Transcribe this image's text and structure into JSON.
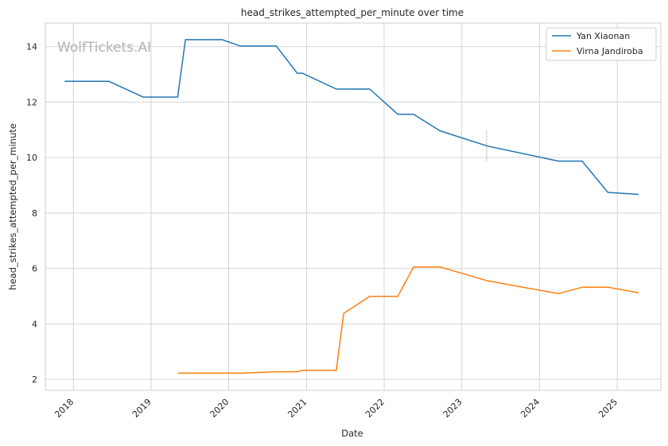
{
  "chart_data": {
    "type": "line",
    "title": "head_strikes_attempted_per_minute over time",
    "xlabel": "Date",
    "ylabel": "head_strikes_attempted_per_minute",
    "x_ticks": [
      "2018",
      "2019",
      "2020",
      "2021",
      "2022",
      "2023",
      "2024",
      "2025"
    ],
    "y_ticks": [
      2,
      4,
      6,
      8,
      10,
      12,
      14
    ],
    "xlim": [
      "2017-08-22",
      "2025-07-25"
    ],
    "ylim": [
      1.6,
      14.85
    ],
    "grid": true,
    "legend_position": "top-right",
    "watermark": "WolfTickets.AI",
    "series": [
      {
        "name": "Yan Xiaonan",
        "color": "#1f77b4",
        "points": [
          {
            "x": "2017-11-21",
            "y": 12.75
          },
          {
            "x": "2018-06-16",
            "y": 12.75
          },
          {
            "x": "2018-11-25",
            "y": 12.18
          },
          {
            "x": "2019-05-06",
            "y": 12.18
          },
          {
            "x": "2019-06-12",
            "y": 14.25
          },
          {
            "x": "2019-12-02",
            "y": 14.25
          },
          {
            "x": "2020-02-25",
            "y": 14.02
          },
          {
            "x": "2020-08-12",
            "y": 14.02
          },
          {
            "x": "2020-11-18",
            "y": 13.04
          },
          {
            "x": "2020-12-13",
            "y": 13.04
          },
          {
            "x": "2021-05-21",
            "y": 12.47
          },
          {
            "x": "2021-10-25",
            "y": 12.47
          },
          {
            "x": "2022-03-06",
            "y": 11.56
          },
          {
            "x": "2022-05-19",
            "y": 11.56
          },
          {
            "x": "2022-09-21",
            "y": 10.96
          },
          {
            "x": "2023-05-03",
            "y": 10.41
          },
          {
            "x": "2024-03-30",
            "y": 9.87
          },
          {
            "x": "2024-07-20",
            "y": 9.87
          },
          {
            "x": "2024-11-18",
            "y": 8.74
          },
          {
            "x": "2025-04-12",
            "y": 8.67
          }
        ]
      },
      {
        "name": "Virna Jandiroba",
        "color": "#ff7f0e",
        "points": [
          {
            "x": "2019-05-06",
            "y": 2.22
          },
          {
            "x": "2020-02-25",
            "y": 2.22
          },
          {
            "x": "2020-08-12",
            "y": 2.27
          },
          {
            "x": "2020-11-18",
            "y": 2.27
          },
          {
            "x": "2020-12-13",
            "y": 2.32
          },
          {
            "x": "2021-05-21",
            "y": 2.32
          },
          {
            "x": "2021-06-25",
            "y": 4.38
          },
          {
            "x": "2021-10-25",
            "y": 4.99
          },
          {
            "x": "2022-03-06",
            "y": 4.99
          },
          {
            "x": "2022-05-19",
            "y": 6.05
          },
          {
            "x": "2022-09-21",
            "y": 6.05
          },
          {
            "x": "2023-05-03",
            "y": 5.55
          },
          {
            "x": "2024-03-30",
            "y": 5.09
          },
          {
            "x": "2024-07-20",
            "y": 5.32
          },
          {
            "x": "2024-11-18",
            "y": 5.32
          },
          {
            "x": "2025-04-12",
            "y": 5.12
          }
        ]
      }
    ]
  }
}
